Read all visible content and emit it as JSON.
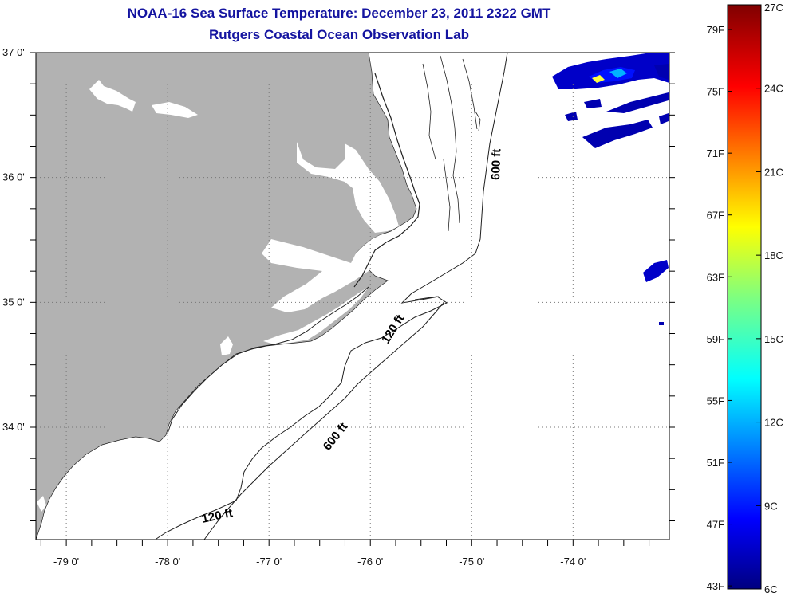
{
  "title": {
    "line1": "NOAA-16 Sea Surface Temperature:  December 23, 2011 2322 GMT",
    "line2": "Rutgers Coastal Ocean Observation Lab"
  },
  "map": {
    "lon_range": [
      -79.3,
      -73.05
    ],
    "lat_range": [
      33.1,
      37.0
    ],
    "lat_ticks": [
      {
        "value": 37,
        "label": "37 0'"
      },
      {
        "value": 36,
        "label": "36 0'"
      },
      {
        "value": 35,
        "label": "35 0'"
      },
      {
        "value": 34,
        "label": "34 0'"
      }
    ],
    "lon_ticks": [
      {
        "value": -79,
        "label": "-79 0'"
      },
      {
        "value": -78,
        "label": "-78 0'"
      },
      {
        "value": -77,
        "label": "-77 0'"
      },
      {
        "value": -76,
        "label": "-76 0'"
      },
      {
        "value": -75,
        "label": "-75 0'"
      },
      {
        "value": -74,
        "label": "-74 0'"
      }
    ],
    "land_color": "#b2b2b2",
    "contours": [
      {
        "label": "120 ft",
        "depth_ft": 120
      },
      {
        "label": "120 ft",
        "depth_ft": 120
      },
      {
        "label": "600 ft",
        "depth_ft": 600
      },
      {
        "label": "600 ft",
        "depth_ft": 600
      }
    ]
  },
  "colorbar": {
    "colormap": "jet",
    "min_c": 6,
    "max_c": 27,
    "fahrenheit_labels": [
      "79F",
      "75F",
      "71F",
      "67F",
      "63F",
      "59F",
      "55F",
      "51F",
      "47F",
      "43F"
    ],
    "celsius_labels": [
      "27C",
      "24C",
      "21C",
      "18C",
      "15C",
      "12C",
      "9C",
      "6C"
    ]
  }
}
